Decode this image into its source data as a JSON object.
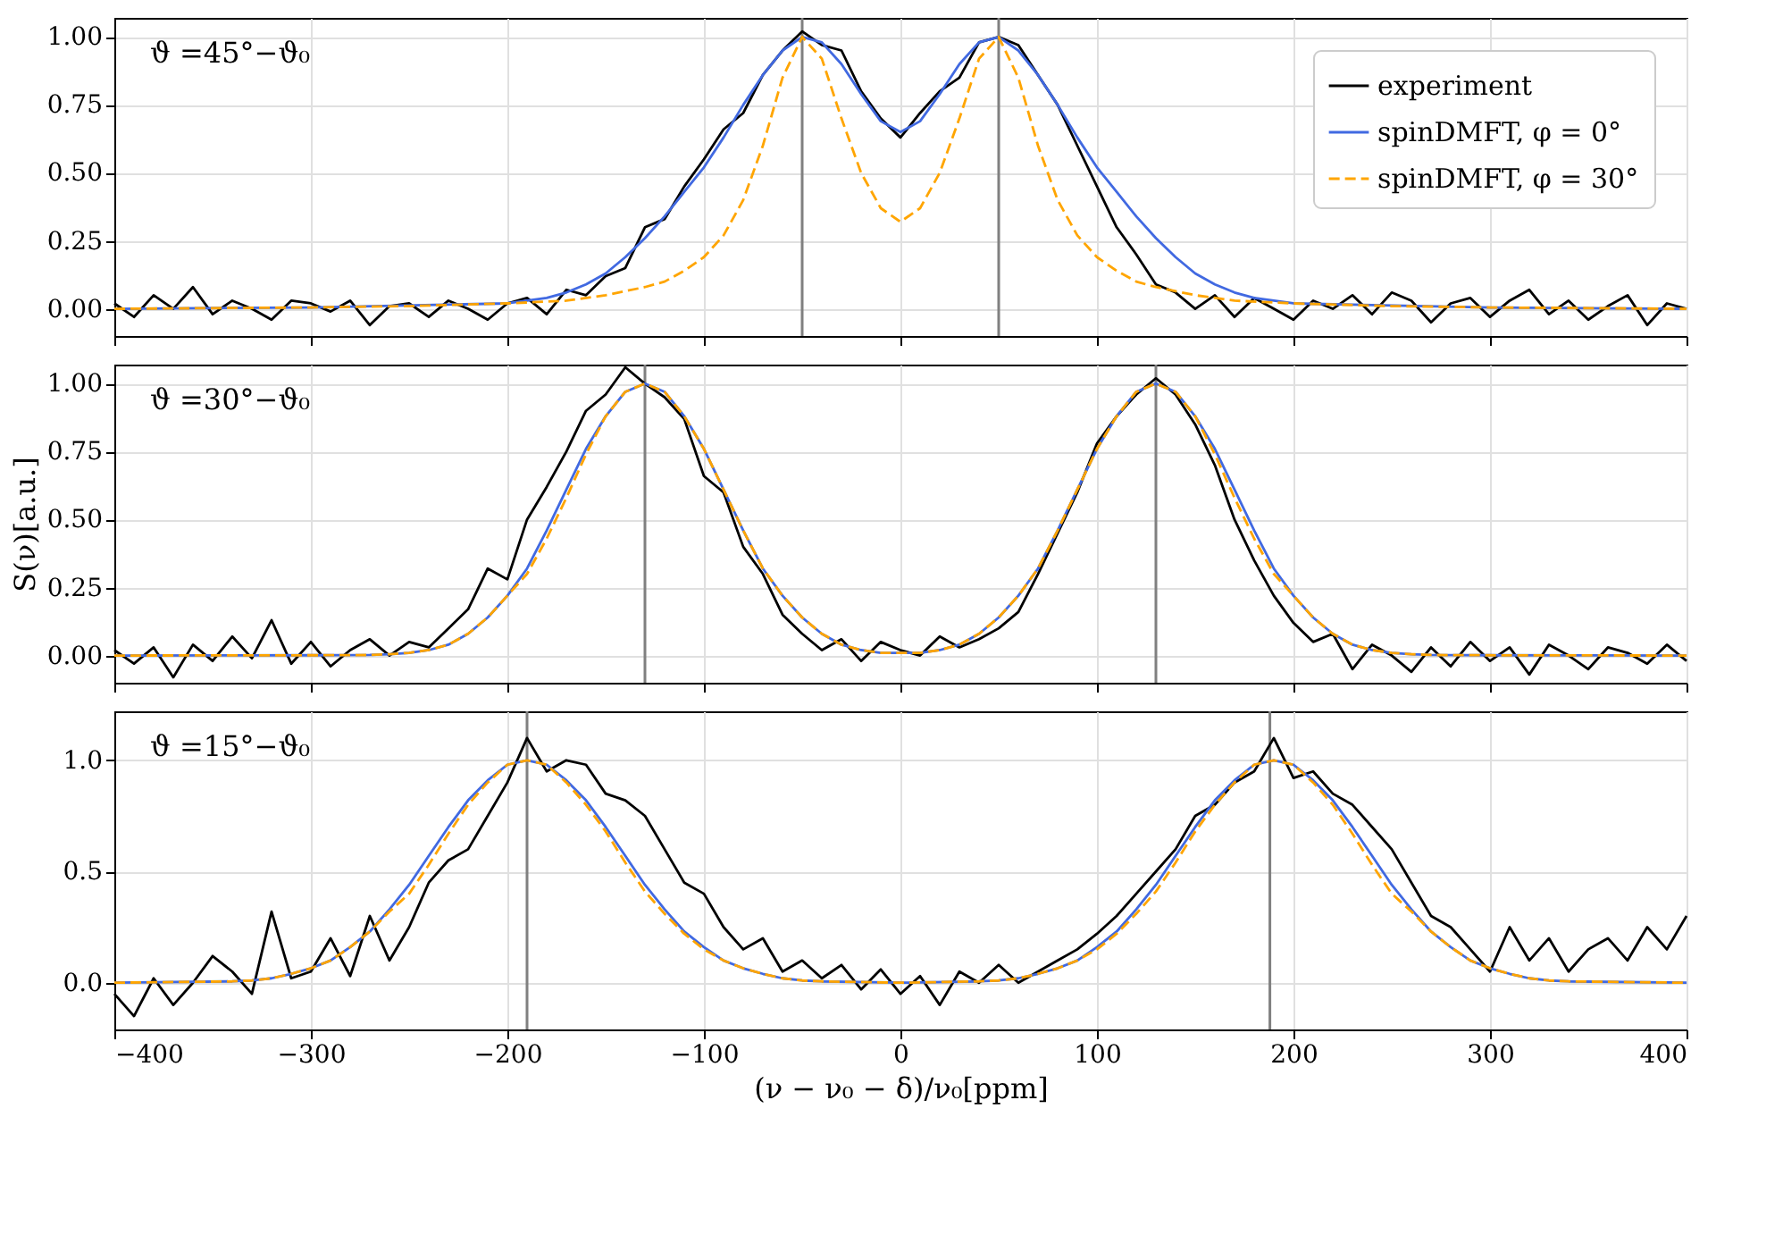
{
  "chart_data": [
    {
      "type": "line",
      "xlim": [
        -400,
        400
      ],
      "ylim": [
        -0.1,
        1.07
      ],
      "xticks": [
        -400,
        -300,
        -200,
        -100,
        0,
        100,
        200,
        300,
        400
      ],
      "yticks": [
        {
          "value": 0,
          "label": "0.00"
        },
        {
          "value": 0.25,
          "label": "0.25"
        },
        {
          "value": 0.5,
          "label": "0.50"
        },
        {
          "value": 0.75,
          "label": "0.75"
        },
        {
          "value": 1,
          "label": "1.00"
        }
      ],
      "tick_labels": "y",
      "grid": true,
      "legend": "top right",
      "annotations": [
        "ϑ =45°−ϑ₀"
      ],
      "ref_lines": [
        {
          "axis": "x",
          "value": -50,
          "color": "#808080"
        },
        {
          "axis": "x",
          "value": 50,
          "color": "#808080"
        }
      ],
      "x": [
        -400,
        -390,
        -380,
        -370,
        -360,
        -350,
        -340,
        -330,
        -320,
        -310,
        -300,
        -290,
        -280,
        -270,
        -260,
        -250,
        -240,
        -230,
        -220,
        -210,
        -200,
        -190,
        -180,
        -170,
        -160,
        -150,
        -140,
        -130,
        -120,
        -110,
        -100,
        -90,
        -80,
        -70,
        -60,
        -50,
        -40,
        -30,
        -20,
        -10,
        0,
        10,
        20,
        30,
        40,
        50,
        60,
        70,
        80,
        90,
        100,
        110,
        120,
        130,
        140,
        150,
        160,
        170,
        180,
        190,
        200,
        210,
        220,
        230,
        240,
        250,
        260,
        270,
        280,
        290,
        300,
        310,
        320,
        330,
        340,
        350,
        360,
        370,
        380,
        390,
        400
      ],
      "series": [
        {
          "name": "experiment",
          "color": "#000000",
          "line_style": "solid",
          "values": [
            0.02,
            -0.03,
            0.05,
            0.0,
            0.08,
            -0.02,
            0.03,
            0.0,
            -0.04,
            0.03,
            0.02,
            -0.01,
            0.03,
            -0.06,
            0.01,
            0.02,
            -0.03,
            0.03,
            0.0,
            -0.04,
            0.02,
            0.04,
            -0.02,
            0.07,
            0.05,
            0.12,
            0.15,
            0.3,
            0.33,
            0.45,
            0.55,
            0.66,
            0.72,
            0.86,
            0.95,
            1.02,
            0.97,
            0.95,
            0.8,
            0.7,
            0.63,
            0.72,
            0.8,
            0.85,
            0.98,
            1.0,
            0.97,
            0.86,
            0.75,
            0.6,
            0.45,
            0.3,
            0.2,
            0.09,
            0.06,
            0.0,
            0.05,
            -0.03,
            0.04,
            0.0,
            -0.04,
            0.03,
            0.0,
            0.05,
            -0.02,
            0.06,
            0.03,
            -0.05,
            0.02,
            0.04,
            -0.03,
            0.03,
            0.07,
            -0.02,
            0.03,
            -0.04,
            0.01,
            0.05,
            -0.06,
            0.02,
            0.0
          ]
        },
        {
          "name": "spinDMFT, φ = 0°",
          "color": "#4169e1",
          "line_style": "solid",
          "x": [
            -400,
            -300,
            -200,
            -190,
            -180,
            -170,
            -160,
            -150,
            -140,
            -130,
            -120,
            -110,
            -100,
            -90,
            -80,
            -70,
            -60,
            -50,
            -40,
            -30,
            -20,
            -10,
            0,
            10,
            20,
            30,
            40,
            50,
            60,
            70,
            80,
            90,
            100,
            110,
            120,
            130,
            140,
            150,
            160,
            170,
            180,
            190,
            200,
            300,
            400
          ],
          "values": [
            0,
            0.005,
            0.02,
            0.03,
            0.04,
            0.06,
            0.09,
            0.13,
            0.19,
            0.26,
            0.34,
            0.43,
            0.52,
            0.63,
            0.75,
            0.86,
            0.95,
            1.0,
            0.98,
            0.9,
            0.79,
            0.69,
            0.65,
            0.69,
            0.79,
            0.9,
            0.98,
            1.0,
            0.95,
            0.86,
            0.75,
            0.63,
            0.52,
            0.43,
            0.34,
            0.26,
            0.19,
            0.13,
            0.09,
            0.06,
            0.04,
            0.03,
            0.02,
            0.005,
            0
          ]
        },
        {
          "name": "spinDMFT, φ = 30°",
          "color": "#ffa500",
          "line_style": "dashed",
          "x": [
            -400,
            -300,
            -250,
            -200,
            -170,
            -150,
            -130,
            -120,
            -110,
            -100,
            -90,
            -80,
            -70,
            -60,
            -50,
            -40,
            -30,
            -20,
            -10,
            0,
            10,
            20,
            30,
            40,
            50,
            60,
            70,
            80,
            90,
            100,
            110,
            120,
            130,
            150,
            170,
            200,
            250,
            300,
            400
          ],
          "values": [
            0,
            0.005,
            0.01,
            0.02,
            0.03,
            0.05,
            0.08,
            0.1,
            0.14,
            0.19,
            0.27,
            0.4,
            0.6,
            0.85,
            1.0,
            0.92,
            0.7,
            0.5,
            0.37,
            0.32,
            0.37,
            0.5,
            0.7,
            0.92,
            1.0,
            0.85,
            0.6,
            0.4,
            0.27,
            0.19,
            0.14,
            0.1,
            0.08,
            0.05,
            0.03,
            0.02,
            0.01,
            0.005,
            0
          ]
        }
      ]
    },
    {
      "type": "line",
      "xlim": [
        -400,
        400
      ],
      "ylim": [
        -0.1,
        1.07
      ],
      "xticks": [
        -400,
        -300,
        -200,
        -100,
        0,
        100,
        200,
        300,
        400
      ],
      "yticks": [
        {
          "value": 0,
          "label": "0.00"
        },
        {
          "value": 0.25,
          "label": "0.25"
        },
        {
          "value": 0.5,
          "label": "0.50"
        },
        {
          "value": 0.75,
          "label": "0.75"
        },
        {
          "value": 1,
          "label": "1.00"
        }
      ],
      "tick_labels": "y",
      "grid": true,
      "ylabel": "S(ν)[a.u.]",
      "annotations": [
        "ϑ =30°−ϑ₀"
      ],
      "ref_lines": [
        {
          "axis": "x",
          "value": -130,
          "color": "#808080"
        },
        {
          "axis": "x",
          "value": 130,
          "color": "#808080"
        }
      ],
      "x": [
        -400,
        -390,
        -380,
        -370,
        -360,
        -350,
        -340,
        -330,
        -320,
        -310,
        -300,
        -290,
        -280,
        -270,
        -260,
        -250,
        -240,
        -230,
        -220,
        -210,
        -200,
        -190,
        -180,
        -170,
        -160,
        -150,
        -140,
        -130,
        -120,
        -110,
        -100,
        -90,
        -80,
        -70,
        -60,
        -50,
        -40,
        -30,
        -20,
        -10,
        0,
        10,
        20,
        30,
        40,
        50,
        60,
        70,
        80,
        90,
        100,
        110,
        120,
        130,
        140,
        150,
        160,
        170,
        180,
        190,
        200,
        210,
        220,
        230,
        240,
        250,
        260,
        270,
        280,
        290,
        300,
        310,
        320,
        330,
        340,
        350,
        360,
        370,
        380,
        390,
        400
      ],
      "series": [
        {
          "color": "#000000",
          "line_style": "solid",
          "values": [
            0.02,
            -0.03,
            0.03,
            -0.08,
            0.04,
            -0.02,
            0.07,
            -0.01,
            0.13,
            -0.03,
            0.05,
            -0.04,
            0.02,
            0.06,
            0.0,
            0.05,
            0.03,
            0.1,
            0.17,
            0.32,
            0.28,
            0.5,
            0.62,
            0.75,
            0.9,
            0.96,
            1.06,
            1.0,
            0.95,
            0.87,
            0.66,
            0.6,
            0.4,
            0.3,
            0.15,
            0.08,
            0.02,
            0.06,
            -0.02,
            0.05,
            0.02,
            0.0,
            0.07,
            0.03,
            0.06,
            0.1,
            0.16,
            0.3,
            0.45,
            0.6,
            0.78,
            0.88,
            0.96,
            1.02,
            0.96,
            0.85,
            0.7,
            0.5,
            0.35,
            0.22,
            0.12,
            0.05,
            0.08,
            -0.05,
            0.04,
            0.0,
            -0.06,
            0.03,
            -0.04,
            0.05,
            -0.02,
            0.03,
            -0.07,
            0.04,
            0.0,
            -0.05,
            0.03,
            0.01,
            -0.03,
            0.04,
            -0.02
          ]
        },
        {
          "color": "#4169e1",
          "line_style": "solid",
          "x": [
            -400,
            -300,
            -270,
            -260,
            -250,
            -240,
            -230,
            -220,
            -210,
            -200,
            -190,
            -180,
            -170,
            -160,
            -150,
            -140,
            -130,
            -120,
            -110,
            -100,
            -90,
            -80,
            -70,
            -60,
            -50,
            -40,
            -30,
            -20,
            -10,
            0,
            10,
            20,
            30,
            40,
            50,
            60,
            70,
            80,
            90,
            100,
            110,
            120,
            130,
            140,
            150,
            160,
            170,
            180,
            190,
            200,
            210,
            220,
            230,
            240,
            250,
            260,
            270,
            300,
            400
          ],
          "values": [
            0,
            0.001,
            0.002,
            0.005,
            0.01,
            0.02,
            0.04,
            0.08,
            0.14,
            0.22,
            0.32,
            0.46,
            0.61,
            0.76,
            0.88,
            0.97,
            1.0,
            0.97,
            0.88,
            0.76,
            0.61,
            0.46,
            0.32,
            0.22,
            0.14,
            0.08,
            0.04,
            0.02,
            0.01,
            0.01,
            0.01,
            0.02,
            0.04,
            0.08,
            0.14,
            0.22,
            0.32,
            0.46,
            0.61,
            0.76,
            0.88,
            0.97,
            1.0,
            0.97,
            0.88,
            0.76,
            0.61,
            0.46,
            0.32,
            0.22,
            0.14,
            0.08,
            0.04,
            0.02,
            0.01,
            0.005,
            0.002,
            0.001,
            0
          ]
        },
        {
          "color": "#ffa500",
          "line_style": "dashed",
          "x": [
            -400,
            -300,
            -270,
            -260,
            -250,
            -240,
            -230,
            -220,
            -210,
            -200,
            -190,
            -180,
            -170,
            -160,
            -150,
            -140,
            -130,
            -120,
            -110,
            -100,
            -90,
            -80,
            -70,
            -60,
            -50,
            -40,
            -30,
            -20,
            -10,
            0,
            10,
            20,
            30,
            40,
            50,
            60,
            70,
            80,
            90,
            100,
            110,
            120,
            130,
            140,
            150,
            160,
            170,
            180,
            190,
            200,
            210,
            220,
            230,
            240,
            250,
            260,
            270,
            300,
            400
          ],
          "values": [
            0,
            0.001,
            0.002,
            0.005,
            0.01,
            0.02,
            0.04,
            0.08,
            0.14,
            0.22,
            0.3,
            0.43,
            0.58,
            0.74,
            0.88,
            0.97,
            1.0,
            0.97,
            0.88,
            0.76,
            0.61,
            0.46,
            0.32,
            0.22,
            0.14,
            0.08,
            0.04,
            0.02,
            0.01,
            0.01,
            0.01,
            0.02,
            0.04,
            0.08,
            0.14,
            0.22,
            0.32,
            0.46,
            0.61,
            0.76,
            0.88,
            0.97,
            1.0,
            0.97,
            0.88,
            0.74,
            0.58,
            0.43,
            0.3,
            0.22,
            0.14,
            0.08,
            0.04,
            0.02,
            0.01,
            0.005,
            0.002,
            0.001,
            0
          ]
        }
      ]
    },
    {
      "type": "line",
      "xlim": [
        -400,
        400
      ],
      "ylim": [
        -0.21,
        1.22
      ],
      "xticks": [
        -400,
        -300,
        -200,
        -100,
        0,
        100,
        200,
        300,
        400
      ],
      "yticks": [
        {
          "value": 0,
          "label": "0.0"
        },
        {
          "value": 0.5,
          "label": "0.5"
        },
        {
          "value": 1,
          "label": "1.0"
        }
      ],
      "grid": true,
      "xlabel": "(ν − ν₀ − δ)/ν₀[ppm]",
      "annotations": [
        "ϑ =15°−ϑ₀"
      ],
      "ref_lines": [
        {
          "axis": "x",
          "value": -190,
          "color": "#808080"
        },
        {
          "axis": "x",
          "value": 188,
          "color": "#808080"
        }
      ],
      "x": [
        -400,
        -390,
        -380,
        -370,
        -360,
        -350,
        -340,
        -330,
        -320,
        -310,
        -300,
        -290,
        -280,
        -270,
        -260,
        -250,
        -240,
        -230,
        -220,
        -210,
        -200,
        -190,
        -180,
        -170,
        -160,
        -150,
        -140,
        -130,
        -120,
        -110,
        -100,
        -90,
        -80,
        -70,
        -60,
        -50,
        -40,
        -30,
        -20,
        -10,
        0,
        10,
        20,
        30,
        40,
        50,
        60,
        70,
        80,
        90,
        100,
        110,
        120,
        130,
        140,
        150,
        160,
        170,
        180,
        190,
        200,
        210,
        220,
        230,
        240,
        250,
        260,
        270,
        280,
        290,
        300,
        310,
        320,
        330,
        340,
        350,
        360,
        370,
        380,
        390,
        400
      ],
      "series": [
        {
          "color": "#000000",
          "line_style": "solid",
          "values": [
            -0.05,
            -0.15,
            0.02,
            -0.1,
            0.0,
            0.12,
            0.05,
            -0.05,
            0.32,
            0.02,
            0.05,
            0.2,
            0.03,
            0.3,
            0.1,
            0.25,
            0.45,
            0.55,
            0.6,
            0.75,
            0.9,
            1.1,
            0.95,
            1.0,
            0.98,
            0.85,
            0.82,
            0.75,
            0.6,
            0.45,
            0.4,
            0.25,
            0.15,
            0.2,
            0.05,
            0.1,
            0.02,
            0.08,
            -0.03,
            0.06,
            -0.05,
            0.03,
            -0.1,
            0.05,
            0.0,
            0.08,
            0.0,
            0.05,
            0.1,
            0.15,
            0.22,
            0.3,
            0.4,
            0.5,
            0.6,
            0.75,
            0.8,
            0.9,
            0.95,
            1.1,
            0.92,
            0.95,
            0.85,
            0.8,
            0.7,
            0.6,
            0.45,
            0.3,
            0.25,
            0.15,
            0.05,
            0.25,
            0.1,
            0.2,
            0.05,
            0.15,
            0.2,
            0.1,
            0.25,
            0.15,
            0.3
          ]
        },
        {
          "color": "#4169e1",
          "line_style": "solid",
          "x": [
            -400,
            -340,
            -330,
            -320,
            -310,
            -300,
            -290,
            -280,
            -270,
            -260,
            -250,
            -240,
            -230,
            -220,
            -210,
            -200,
            -190,
            -180,
            -170,
            -160,
            -150,
            -140,
            -130,
            -120,
            -110,
            -100,
            -90,
            -80,
            -70,
            -60,
            -50,
            -40,
            0,
            40,
            50,
            60,
            70,
            80,
            90,
            100,
            110,
            120,
            130,
            140,
            150,
            160,
            170,
            180,
            190,
            200,
            210,
            220,
            230,
            240,
            250,
            260,
            270,
            280,
            290,
            300,
            310,
            320,
            330,
            340,
            400
          ],
          "values": [
            0,
            0.006,
            0.01,
            0.02,
            0.04,
            0.065,
            0.1,
            0.16,
            0.23,
            0.33,
            0.44,
            0.57,
            0.7,
            0.82,
            0.91,
            0.98,
            1.0,
            0.98,
            0.91,
            0.82,
            0.7,
            0.57,
            0.44,
            0.33,
            0.23,
            0.16,
            0.1,
            0.065,
            0.04,
            0.02,
            0.01,
            0.006,
            0,
            0.006,
            0.01,
            0.02,
            0.04,
            0.065,
            0.1,
            0.16,
            0.23,
            0.33,
            0.44,
            0.57,
            0.7,
            0.82,
            0.91,
            0.98,
            1.0,
            0.98,
            0.91,
            0.82,
            0.7,
            0.57,
            0.44,
            0.33,
            0.23,
            0.16,
            0.1,
            0.065,
            0.04,
            0.02,
            0.01,
            0.006,
            0
          ]
        },
        {
          "color": "#ffa500",
          "line_style": "dashed",
          "x": [
            -400,
            -340,
            -330,
            -320,
            -310,
            -300,
            -290,
            -280,
            -270,
            -260,
            -250,
            -240,
            -230,
            -220,
            -210,
            -200,
            -190,
            -180,
            -170,
            -160,
            -150,
            -140,
            -130,
            -120,
            -110,
            -100,
            -90,
            -80,
            -70,
            -60,
            -50,
            -40,
            0,
            40,
            50,
            60,
            70,
            80,
            90,
            100,
            110,
            120,
            130,
            140,
            150,
            160,
            170,
            180,
            190,
            200,
            210,
            220,
            230,
            240,
            250,
            260,
            270,
            280,
            290,
            300,
            310,
            320,
            330,
            340,
            400
          ],
          "values": [
            0,
            0.006,
            0.01,
            0.02,
            0.04,
            0.065,
            0.1,
            0.16,
            0.23,
            0.32,
            0.4,
            0.53,
            0.67,
            0.8,
            0.9,
            0.98,
            1.0,
            0.98,
            0.9,
            0.8,
            0.68,
            0.54,
            0.41,
            0.31,
            0.22,
            0.15,
            0.1,
            0.065,
            0.04,
            0.02,
            0.01,
            0.006,
            0,
            0.006,
            0.01,
            0.02,
            0.04,
            0.065,
            0.1,
            0.15,
            0.22,
            0.31,
            0.41,
            0.54,
            0.68,
            0.8,
            0.9,
            0.98,
            1.0,
            0.98,
            0.9,
            0.8,
            0.67,
            0.53,
            0.4,
            0.32,
            0.23,
            0.16,
            0.1,
            0.065,
            0.04,
            0.02,
            0.01,
            0.006,
            0
          ]
        }
      ]
    }
  ]
}
